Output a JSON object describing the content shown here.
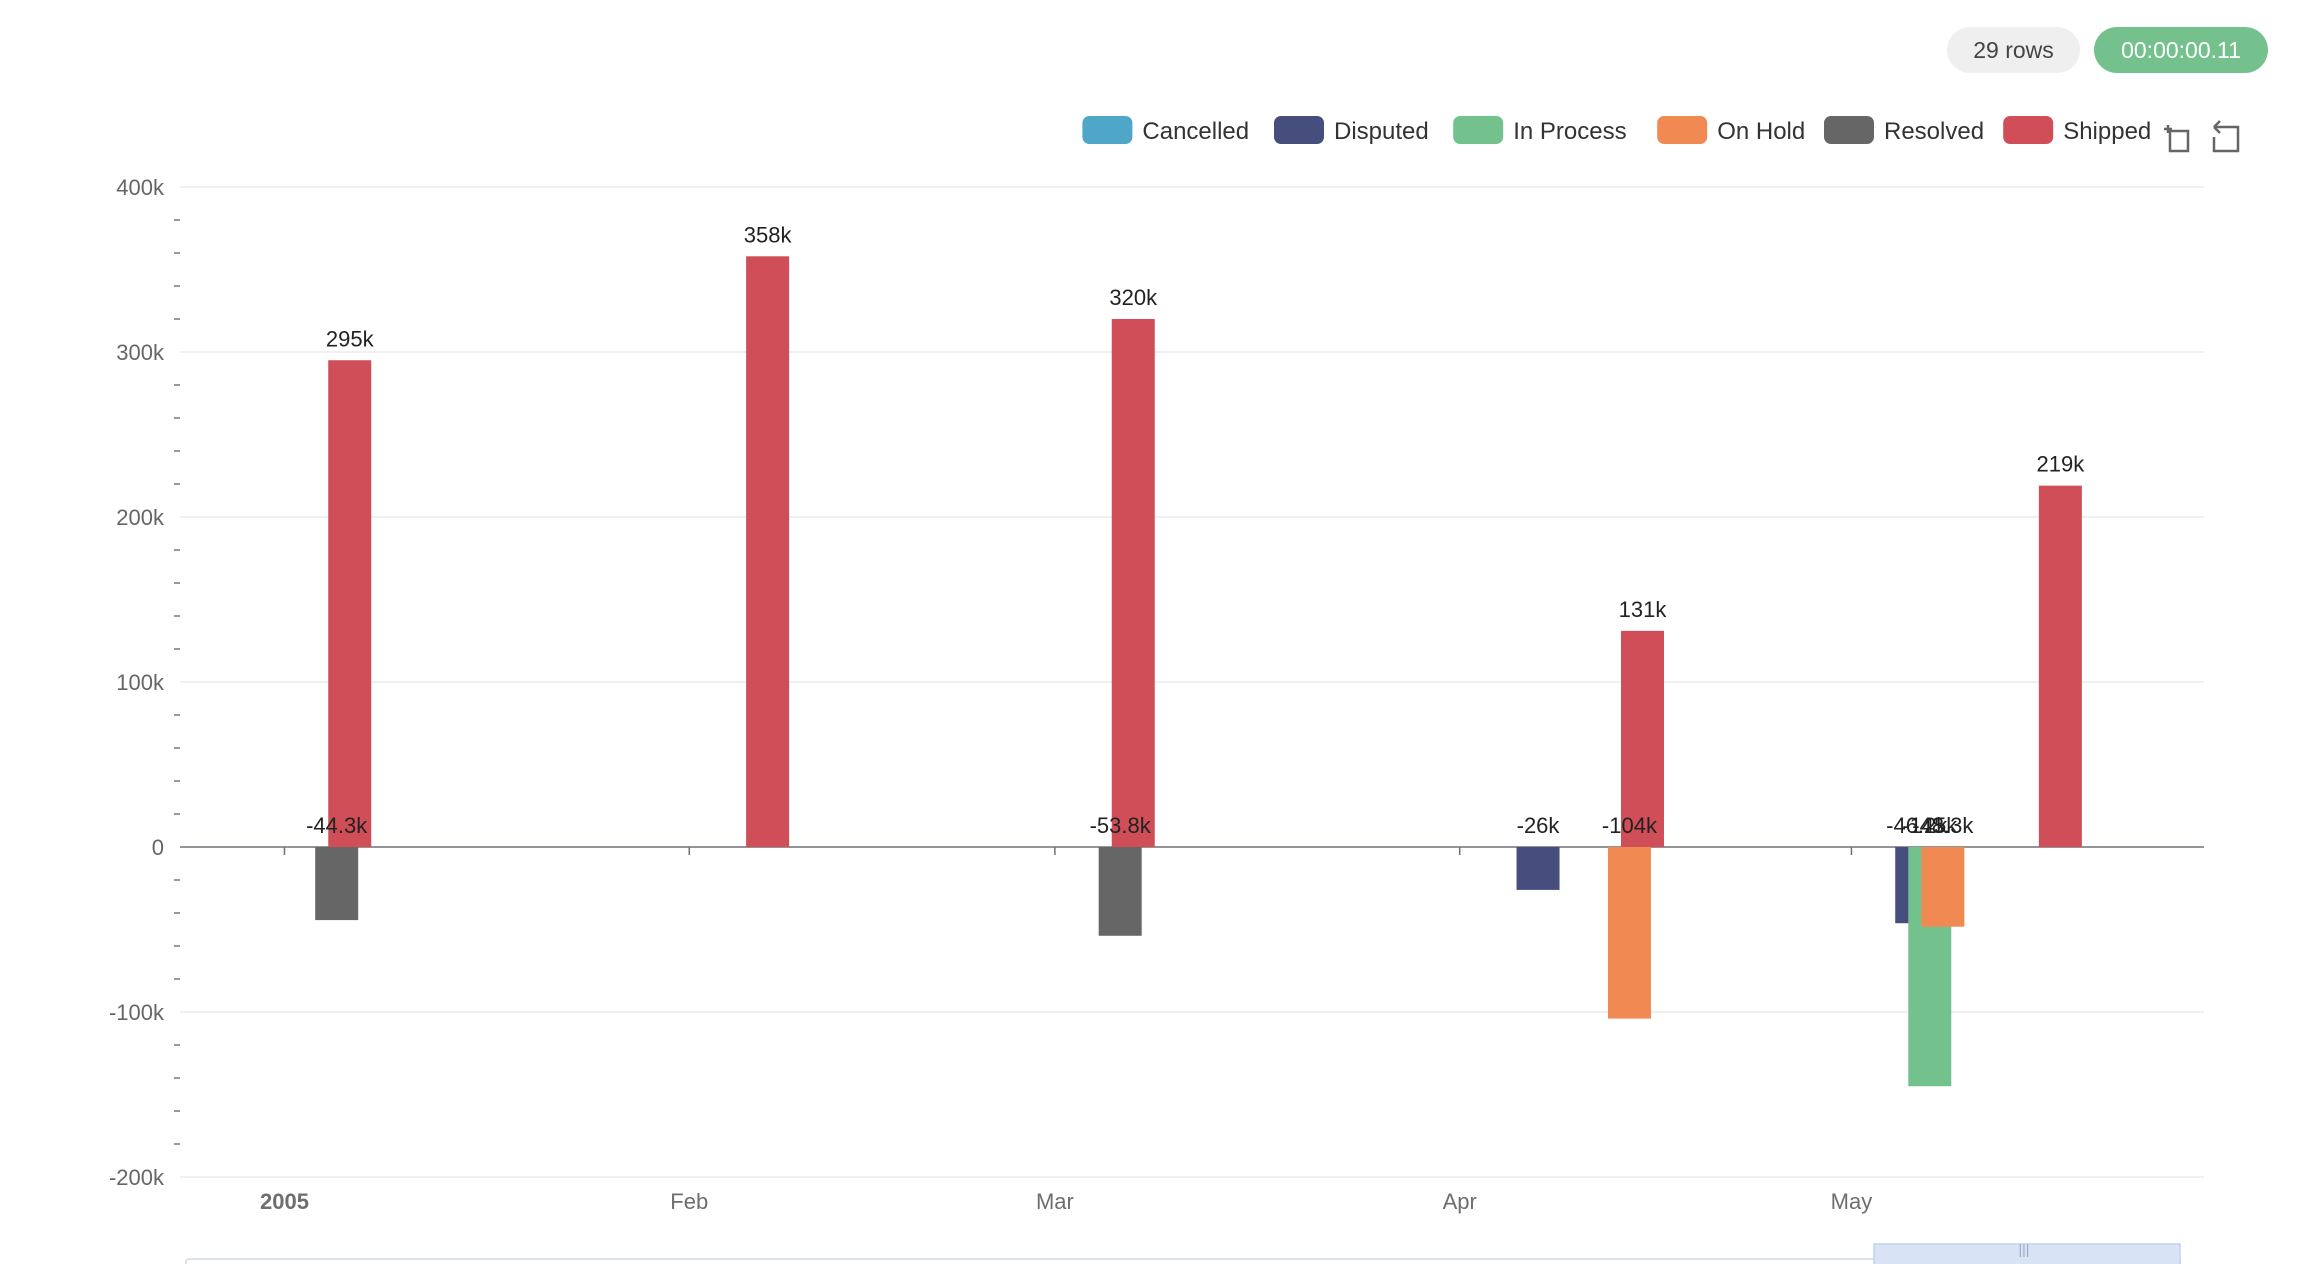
{
  "toolbar": {
    "rows_label": "29 rows",
    "timer_label": "00:00:00.11"
  },
  "icons": {
    "zoom": "zoom-select-icon",
    "reset": "zoom-reset-icon"
  },
  "chart_data": {
    "type": "bar",
    "title": "",
    "xlabel": "",
    "ylabel": "",
    "ylim": [
      -200000,
      400000
    ],
    "yticks": [
      {
        "value": 400000,
        "label": "400k"
      },
      {
        "value": 300000,
        "label": "300k"
      },
      {
        "value": 200000,
        "label": "200k"
      },
      {
        "value": 100000,
        "label": "100k"
      },
      {
        "value": 0,
        "label": "0"
      },
      {
        "value": -100000,
        "label": "-100k"
      },
      {
        "value": -200000,
        "label": "-200k"
      }
    ],
    "x_range": [
      "2004-12-24",
      "2005-05-28"
    ],
    "xticks": [
      {
        "date": "2005-01-01",
        "label": "2005",
        "bold": true
      },
      {
        "date": "2005-02-01",
        "label": "Feb",
        "bold": false
      },
      {
        "date": "2005-03-01",
        "label": "Mar",
        "bold": false
      },
      {
        "date": "2005-04-01",
        "label": "Apr",
        "bold": false
      },
      {
        "date": "2005-05-01",
        "label": "May",
        "bold": false
      }
    ],
    "legend_position": "top-right",
    "grid": true,
    "series": [
      {
        "name": "Cancelled",
        "color": "#4ea6c8",
        "points": []
      },
      {
        "name": "Disputed",
        "color": "#454e7c",
        "points": [
          {
            "date": "2005-04-07",
            "value": -26000,
            "label": "-26k"
          },
          {
            "date": "2005-05-06",
            "value": -46200,
            "label": "-46.2k"
          }
        ]
      },
      {
        "name": "In Process",
        "color": "#73c28d",
        "points": [
          {
            "date": "2005-05-07",
            "value": -145000,
            "label": "-145k"
          }
        ]
      },
      {
        "name": "On Hold",
        "color": "#f08a52",
        "points": [
          {
            "date": "2005-04-14",
            "value": -104000,
            "label": "-104k"
          },
          {
            "date": "2005-05-08",
            "value": -48300,
            "label": "-48.3k"
          }
        ]
      },
      {
        "name": "Resolved",
        "color": "#666666",
        "points": [
          {
            "date": "2005-01-05",
            "value": -44300,
            "label": "-44.3k"
          },
          {
            "date": "2005-03-06",
            "value": -53800,
            "label": "-53.8k"
          }
        ]
      },
      {
        "name": "Shipped",
        "color": "#cf4e57",
        "points": [
          {
            "date": "2005-01-06",
            "value": 295000,
            "label": "295k"
          },
          {
            "date": "2005-02-07",
            "value": 358000,
            "label": "358k"
          },
          {
            "date": "2005-03-07",
            "value": 320000,
            "label": "320k"
          },
          {
            "date": "2005-04-15",
            "value": 131000,
            "label": "131k"
          },
          {
            "date": "2005-05-17",
            "value": 219000,
            "label": "219k"
          }
        ]
      }
    ]
  }
}
